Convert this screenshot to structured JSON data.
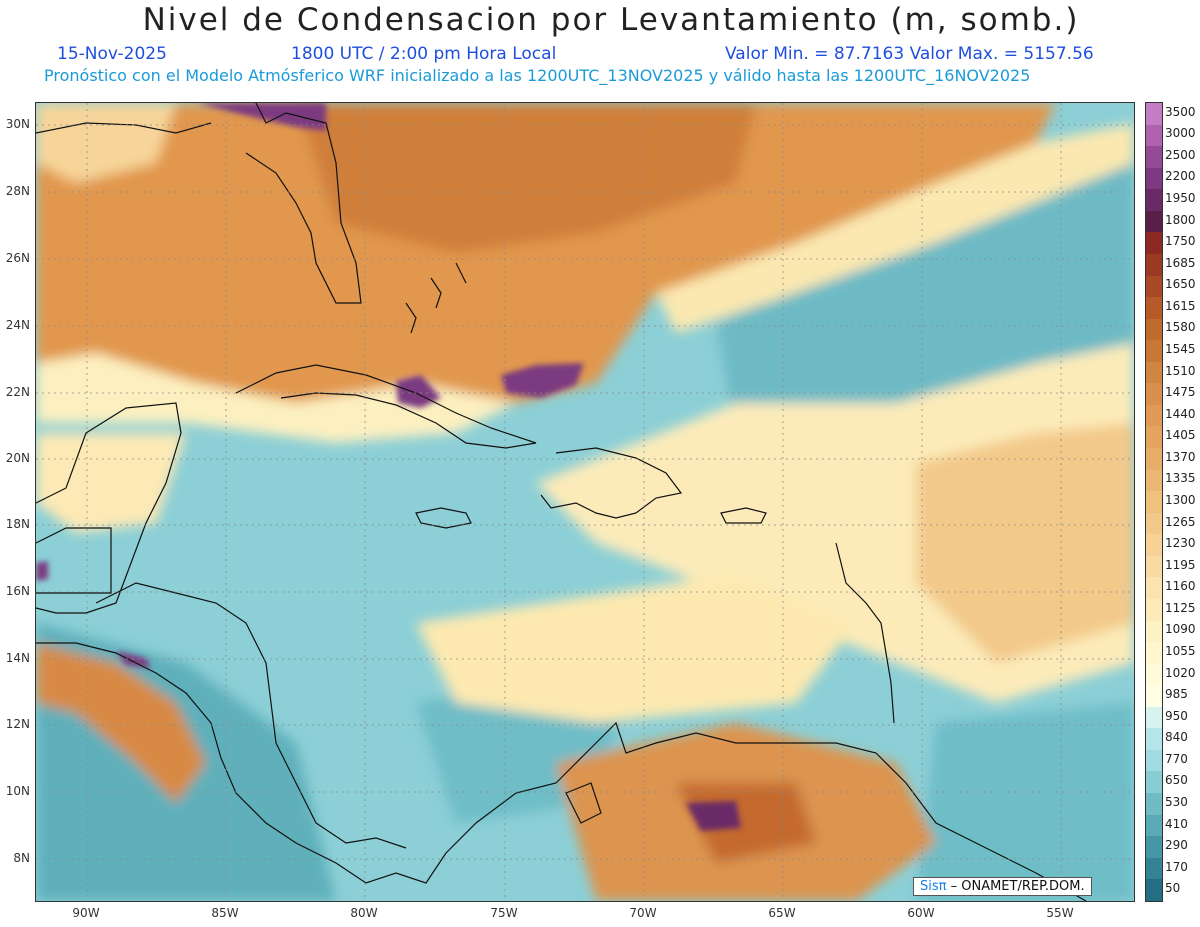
{
  "header": {
    "title": "Nivel de Condensacion por Levantamiento (m, somb.)",
    "date": "15-Nov-2025",
    "time": "1800 UTC / 2:00 pm Hora Local",
    "minmax": "Valor Min. = 87.7163   Valor Max. = 5157.56",
    "description": "Pronóstico con el Modelo Atmósferico WRF inicializado a las 1200UTC_13NOV2025 y válido hasta las  1200UTC_16NOV2025"
  },
  "axes": {
    "lat_labels": [
      "30N",
      "28N",
      "26N",
      "24N",
      "22N",
      "20N",
      "18N",
      "16N",
      "14N",
      "12N",
      "10N",
      "8N"
    ],
    "lon_labels": [
      "90W",
      "85W",
      "80W",
      "75W",
      "70W",
      "65W",
      "60W",
      "55W"
    ]
  },
  "colorbar": {
    "levels": [
      "3500",
      "3000",
      "2500",
      "2200",
      "1950",
      "1800",
      "1750",
      "1685",
      "1650",
      "1615",
      "1580",
      "1545",
      "1510",
      "1475",
      "1440",
      "1405",
      "1370",
      "1335",
      "1300",
      "1265",
      "1230",
      "1195",
      "1160",
      "1125",
      "1090",
      "1055",
      "1020",
      "985",
      "950",
      "840",
      "770",
      "650",
      "530",
      "410",
      "290",
      "170",
      "50"
    ],
    "colors": [
      "#c47cc2",
      "#b062ae",
      "#944a94",
      "#7d3a80",
      "#6a2a68",
      "#5a1f48",
      "#8b2a22",
      "#9a3a22",
      "#a84825",
      "#b55a28",
      "#c06a2c",
      "#c87834",
      "#d08640",
      "#d8914c",
      "#df9a55",
      "#e4a35e",
      "#e8ad68",
      "#ecb673",
      "#f0c07e",
      "#f3c98a",
      "#f6d296",
      "#f8dba2",
      "#fae3ad",
      "#fcebb9",
      "#fdf2c4",
      "#fef7cf",
      "#fffbd9",
      "#fffde3",
      "#d8f2f0",
      "#b4e5e8",
      "#9fdbe0",
      "#88cdd4",
      "#70bcc5",
      "#5aa9b5",
      "#4696a5",
      "#348294",
      "#246e84"
    ]
  },
  "credit": {
    "brand": "Sisπ",
    "org": " – ONAMET/REP.DOM."
  }
}
